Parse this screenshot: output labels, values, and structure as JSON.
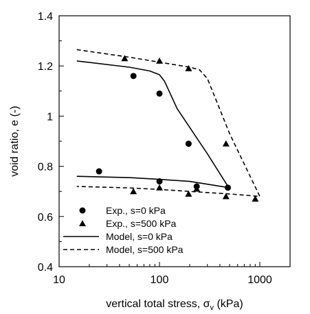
{
  "chart_data": {
    "type": "scatter",
    "xlabel": "vertical total stress, σ",
    "xlabel_sub": "v",
    "xlabel_unit": " (kPa)",
    "ylabel": "void ratio, e (-)",
    "x_scale": "log",
    "xlim": [
      10,
      2000
    ],
    "ylim": [
      0.4,
      1.4
    ],
    "x_ticks": [
      {
        "value": 10,
        "label": "10"
      },
      {
        "value": 100,
        "label": "100"
      },
      {
        "value": 1000,
        "label": "1000"
      }
    ],
    "y_ticks": [
      {
        "value": 0.4,
        "label": "0.4"
      },
      {
        "value": 0.6,
        "label": "0.6"
      },
      {
        "value": 0.8,
        "label": "0.8"
      },
      {
        "value": 1.0,
        "label": "1"
      },
      {
        "value": 1.2,
        "label": "1.2"
      },
      {
        "value": 1.4,
        "label": "1.4"
      }
    ],
    "grid": false,
    "legend_position": "bottom-left",
    "series": [
      {
        "name": "Exp., s=0 kPa",
        "kind": "marker",
        "marker": "circle",
        "points": [
          {
            "x": 25,
            "y": 0.78
          },
          {
            "x": 55,
            "y": 1.16
          },
          {
            "x": 100,
            "y": 1.09
          },
          {
            "x": 100,
            "y": 0.74
          },
          {
            "x": 195,
            "y": 0.89
          },
          {
            "x": 235,
            "y": 0.72
          },
          {
            "x": 480,
            "y": 0.715
          }
        ]
      },
      {
        "name": "Exp., s=500 kPa",
        "kind": "marker",
        "marker": "triangle",
        "points": [
          {
            "x": 45,
            "y": 1.23
          },
          {
            "x": 55,
            "y": 0.7
          },
          {
            "x": 100,
            "y": 1.22
          },
          {
            "x": 100,
            "y": 0.715
          },
          {
            "x": 195,
            "y": 1.19
          },
          {
            "x": 195,
            "y": 0.69
          },
          {
            "x": 235,
            "y": 0.71
          },
          {
            "x": 460,
            "y": 0.89
          },
          {
            "x": 460,
            "y": 0.68
          },
          {
            "x": 900,
            "y": 0.67
          }
        ]
      },
      {
        "name": "Model, s=0 kPa",
        "kind": "line",
        "dash": "solid",
        "points": [
          {
            "x": 15,
            "y": 1.22
          },
          {
            "x": 50,
            "y": 1.195
          },
          {
            "x": 80,
            "y": 1.18
          },
          {
            "x": 100,
            "y": 1.165
          },
          {
            "x": 112,
            "y": 1.14
          },
          {
            "x": 150,
            "y": 1.03
          },
          {
            "x": 300,
            "y": 0.85
          },
          {
            "x": 490,
            "y": 0.715
          },
          {
            "x": 200,
            "y": 0.74
          },
          {
            "x": 100,
            "y": 0.748
          },
          {
            "x": 50,
            "y": 0.755
          },
          {
            "x": 15,
            "y": 0.76
          }
        ]
      },
      {
        "name": "Model, s=500 kPa",
        "kind": "line",
        "dash": "dashed",
        "points": [
          {
            "x": 15,
            "y": 1.265
          },
          {
            "x": 50,
            "y": 1.235
          },
          {
            "x": 100,
            "y": 1.215
          },
          {
            "x": 200,
            "y": 1.195
          },
          {
            "x": 250,
            "y": 1.185
          },
          {
            "x": 300,
            "y": 1.15
          },
          {
            "x": 500,
            "y": 0.93
          },
          {
            "x": 1000,
            "y": 0.68
          },
          {
            "x": 500,
            "y": 0.69
          },
          {
            "x": 200,
            "y": 0.7
          },
          {
            "x": 100,
            "y": 0.708
          },
          {
            "x": 50,
            "y": 0.714
          },
          {
            "x": 15,
            "y": 0.72
          }
        ]
      }
    ]
  }
}
